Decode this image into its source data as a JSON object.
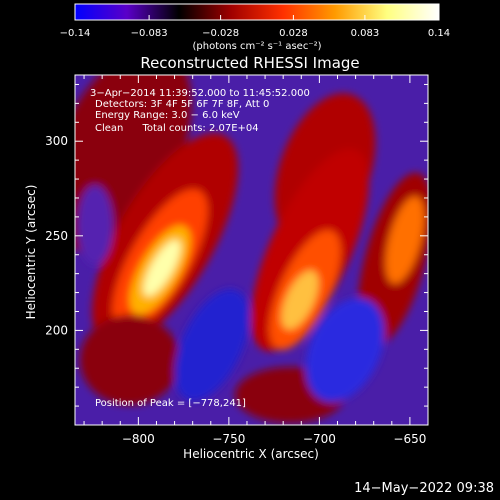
{
  "chart_data": {
    "type": "heatmap",
    "title": "Reconstructed RHESSI Image",
    "xlabel": "Heliocentric X (arcsec)",
    "ylabel": "Heliocentric Y (arcsec)",
    "xlim": [
      -835,
      -640
    ],
    "ylim": [
      150,
      335
    ],
    "x_ticks": [
      -800,
      -750,
      -700,
      -650
    ],
    "y_ticks": [
      200,
      250,
      300
    ],
    "x_tick_labels": [
      "−800",
      "−750",
      "−700",
      "−650"
    ],
    "y_tick_labels": [
      "200",
      "250",
      "300"
    ],
    "colorbar": {
      "range": [
        -0.14,
        0.14
      ],
      "ticks": [
        -0.14,
        -0.083,
        -0.028,
        0.028,
        0.083,
        0.14
      ],
      "tick_labels": [
        "−0.14",
        "−0.083",
        "−0.028",
        "0.028",
        "0.083",
        "0.14"
      ],
      "unit_label": "(photons cm⁻² s⁻¹ asec⁻²)",
      "colors": [
        "#0000ff",
        "#5a00c8",
        "#000000",
        "#a00000",
        "#ff3000",
        "#ff9a00",
        "#ffff80",
        "#ffffff"
      ]
    },
    "peak": {
      "x": -778,
      "y": 241
    },
    "annotations": [
      "3−Apr−2014 11:39:52.000 to 11:45:52.000",
      "Detectors: 3F 4F 5F 6F 7F 8F, Att 0",
      "Energy Range: 3.0 − 6.0 keV",
      "Clean      Total counts: 2.07E+04"
    ],
    "peak_label": "Position of Peak = [−778,241]"
  },
  "footer": {
    "timestamp": "14−May−2022 09:38"
  }
}
